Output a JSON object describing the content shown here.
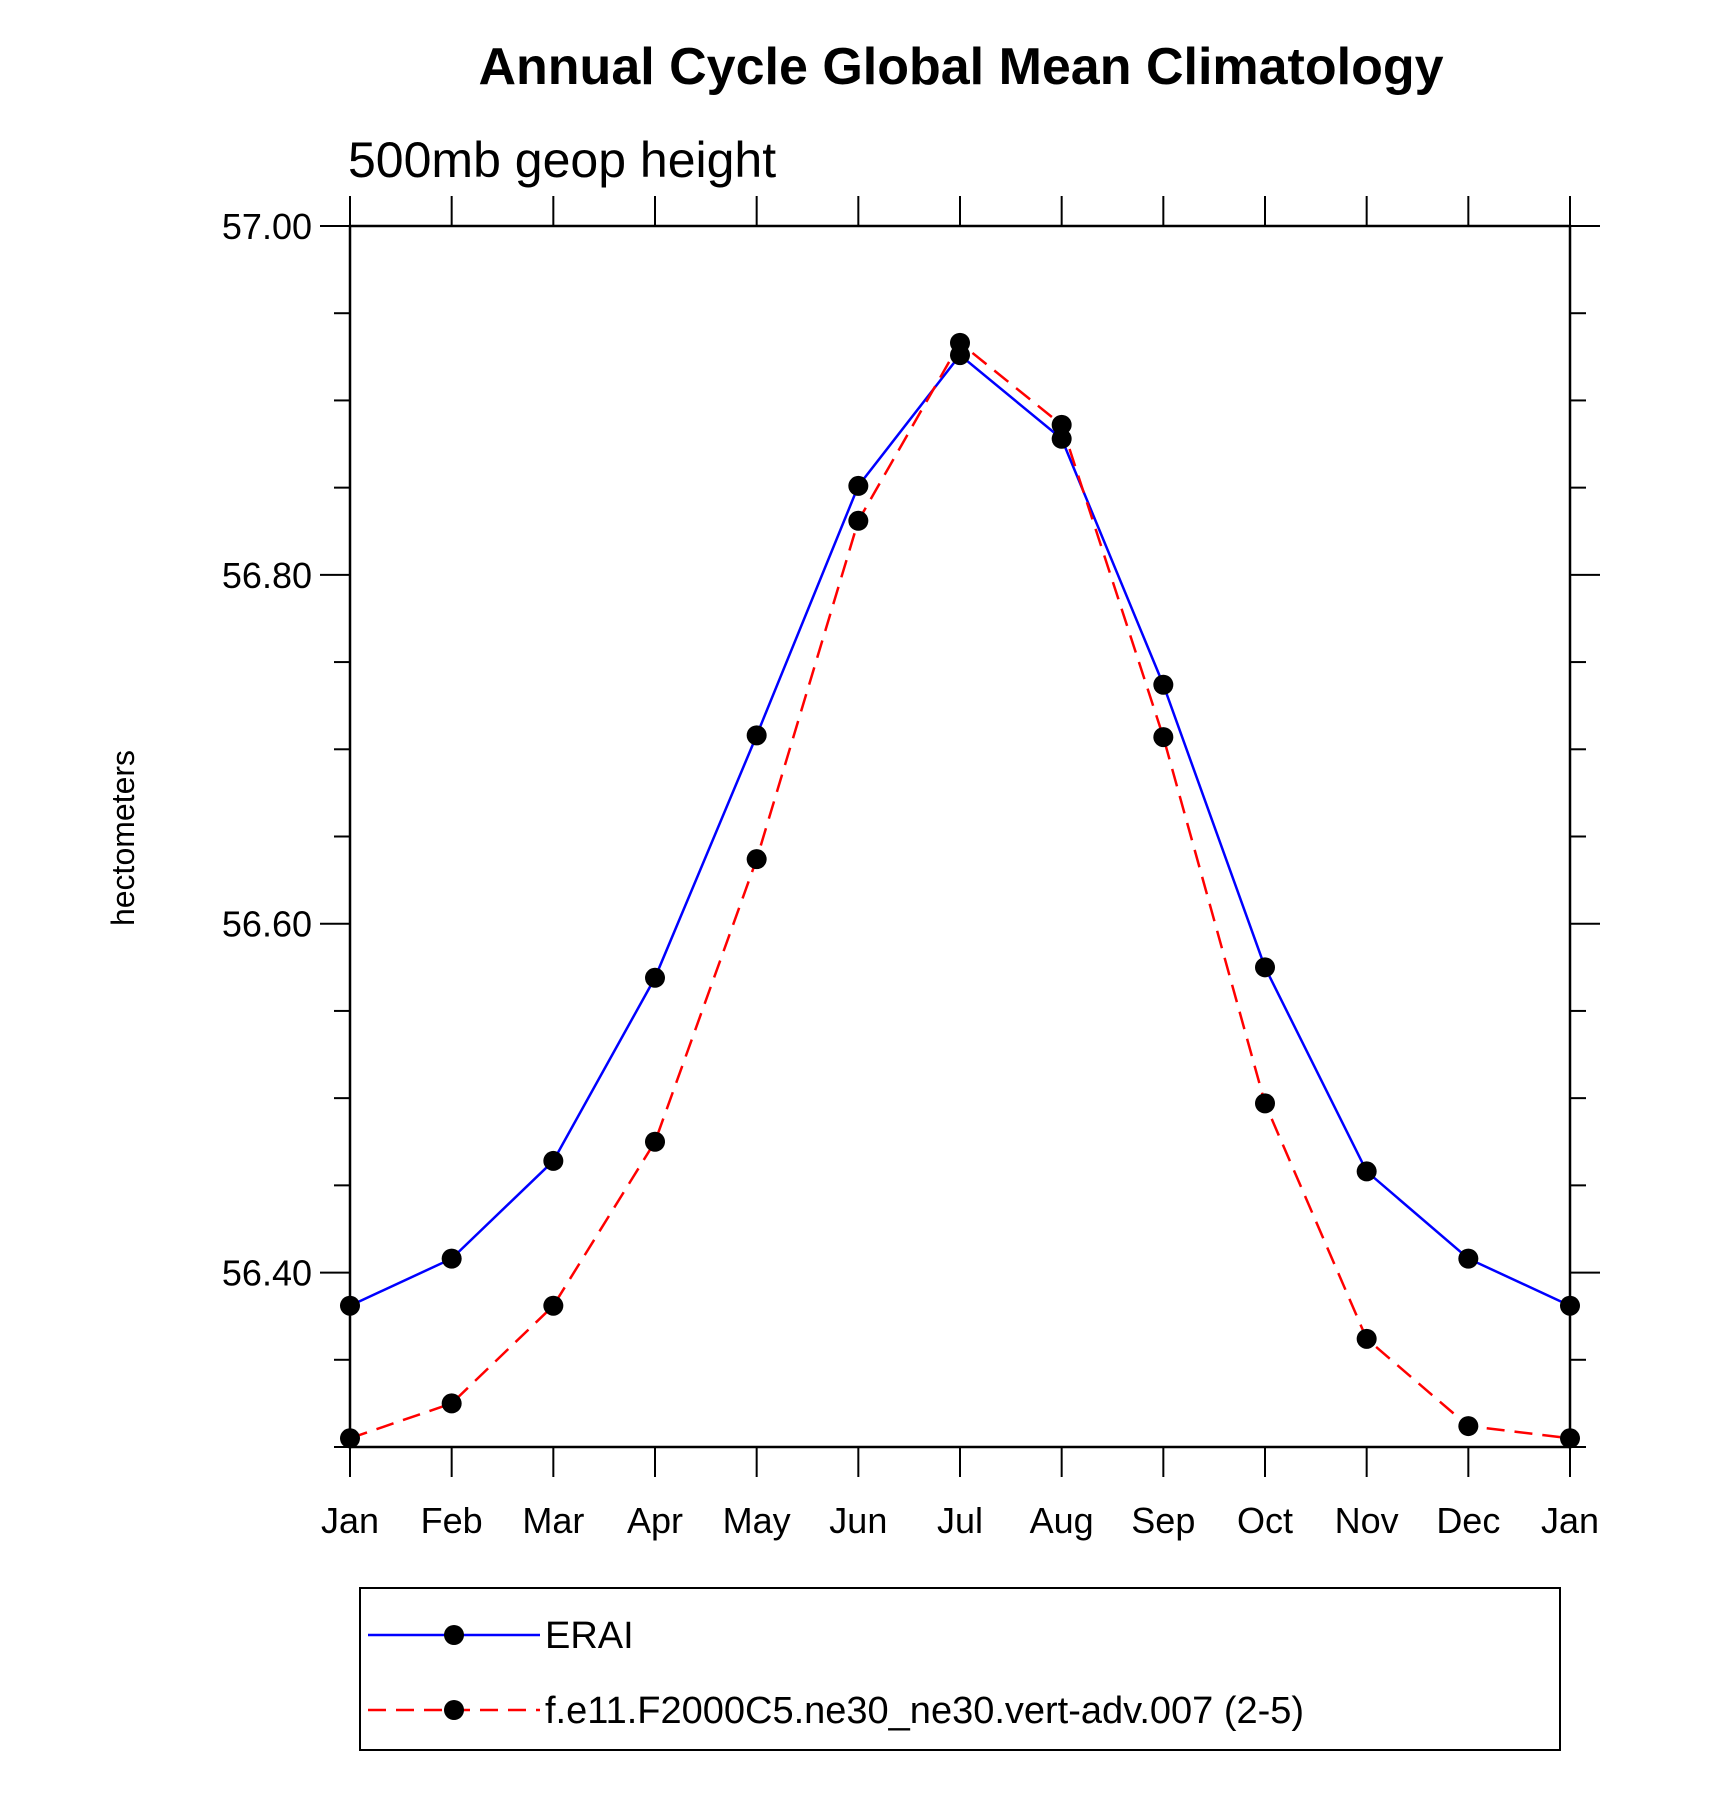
{
  "chart_data": {
    "type": "line",
    "title": "Annual Cycle Global Mean Climatology",
    "subtitle": "500mb geop height",
    "ylabel": "hectometers",
    "xlabel": "",
    "categories": [
      "Jan",
      "Feb",
      "Mar",
      "Apr",
      "May",
      "Jun",
      "Jul",
      "Aug",
      "Sep",
      "Oct",
      "Nov",
      "Dec",
      "Jan"
    ],
    "ylim": [
      56.3,
      57.0
    ],
    "yticks": [
      "57.00",
      "56.80",
      "56.60",
      "56.40"
    ],
    "ytick_values": [
      57.0,
      56.8,
      56.6,
      56.4
    ],
    "series": [
      {
        "name": "ERAI",
        "color": "#0000ff",
        "dash": "solid",
        "values": [
          56.381,
          56.408,
          56.464,
          56.569,
          56.708,
          56.851,
          56.926,
          56.878,
          56.737,
          56.575,
          56.458,
          56.408,
          56.381
        ]
      },
      {
        "name": "f.e11.F2000C5.ne30_ne30.vert-adv.007 (2-5)",
        "color": "#ff0000",
        "dash": "dashed",
        "values": [
          56.305,
          56.325,
          56.381,
          56.475,
          56.637,
          56.831,
          56.933,
          56.886,
          56.707,
          56.497,
          56.362,
          56.312,
          56.305
        ]
      }
    ],
    "legend_position": "bottom",
    "grid": false
  }
}
